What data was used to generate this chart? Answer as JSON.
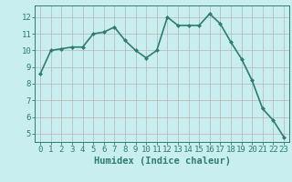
{
  "x": [
    0,
    1,
    2,
    3,
    4,
    5,
    6,
    7,
    8,
    9,
    10,
    11,
    12,
    13,
    14,
    15,
    16,
    17,
    18,
    19,
    20,
    21,
    22,
    23
  ],
  "y": [
    8.6,
    10.0,
    10.1,
    10.2,
    10.2,
    11.0,
    11.1,
    11.4,
    10.6,
    10.0,
    9.55,
    10.0,
    12.0,
    11.5,
    11.5,
    11.5,
    12.2,
    11.6,
    10.5,
    9.5,
    8.2,
    6.5,
    5.8,
    4.8
  ],
  "line_color": "#2e7d6e",
  "marker": "D",
  "marker_size": 2.0,
  "bg_color": "#c8eef0",
  "grid_color_teal": "#9bbcbc",
  "grid_color_pink": "#e8c8c8",
  "xlabel": "Humidex (Indice chaleur)",
  "ylim": [
    4.5,
    12.7
  ],
  "xlim": [
    -0.5,
    23.5
  ],
  "yticks": [
    5,
    6,
    7,
    8,
    9,
    10,
    11,
    12
  ],
  "xticks": [
    0,
    1,
    2,
    3,
    4,
    5,
    6,
    7,
    8,
    9,
    10,
    11,
    12,
    13,
    14,
    15,
    16,
    17,
    18,
    19,
    20,
    21,
    22,
    23
  ],
  "linewidth": 1.2,
  "xlabel_fontsize": 7.5,
  "tick_fontsize": 6.5
}
